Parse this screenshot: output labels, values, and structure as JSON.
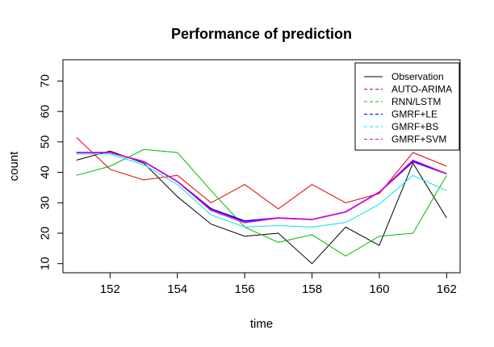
{
  "chart_data": {
    "type": "line",
    "title": "Performance of prediction",
    "xlabel": "time",
    "ylabel": "count",
    "x": [
      151,
      152,
      153,
      154,
      155,
      156,
      157,
      158,
      159,
      160,
      161,
      162
    ],
    "xlim": [
      150.6,
      162.4
    ],
    "ylim": [
      7,
      77
    ],
    "x_ticks": [
      "152",
      "154",
      "156",
      "158",
      "160",
      "162"
    ],
    "y_ticks": [
      "10",
      "20",
      "30",
      "40",
      "50",
      "60",
      "70"
    ],
    "legend_position": "top-right",
    "grid": false,
    "series": [
      {
        "name": "Observation",
        "color": "#000000",
        "dash": "solid",
        "values": [
          44,
          47,
          43,
          32,
          23,
          19,
          20,
          10,
          22,
          16,
          43,
          25
        ]
      },
      {
        "name": "AUTO-ARIMA",
        "color": "#df0000",
        "dash": "solid",
        "values": [
          51.5,
          41,
          37.5,
          39,
          30,
          36,
          28,
          36,
          30,
          33,
          46.5,
          42
        ]
      },
      {
        "name": "RNN/LSTM",
        "color": "#00bb00",
        "dash": "solid",
        "values": [
          39,
          42,
          47.5,
          46.5,
          34,
          22,
          17,
          19.5,
          12.5,
          19,
          20,
          39
        ]
      },
      {
        "name": "GMRF+LE",
        "color": "#0000dd",
        "dash": "solid",
        "values": [
          46.5,
          46.5,
          43.5,
          37,
          28,
          24,
          25,
          24.5,
          27,
          33.5,
          43.5,
          39.5
        ]
      },
      {
        "name": "GMRF+BS",
        "color": "#00e5e5",
        "dash": "solid",
        "values": [
          46,
          46,
          42.5,
          36,
          26,
          22,
          22.5,
          22,
          23.5,
          29.5,
          39,
          34
        ]
      },
      {
        "name": "GMRF+SVM",
        "color": "#dd00dd",
        "dash": "solid",
        "values": [
          46.5,
          46.5,
          43.5,
          37,
          27.5,
          23.5,
          25,
          24.5,
          27,
          33.5,
          44,
          39.5
        ]
      }
    ]
  }
}
